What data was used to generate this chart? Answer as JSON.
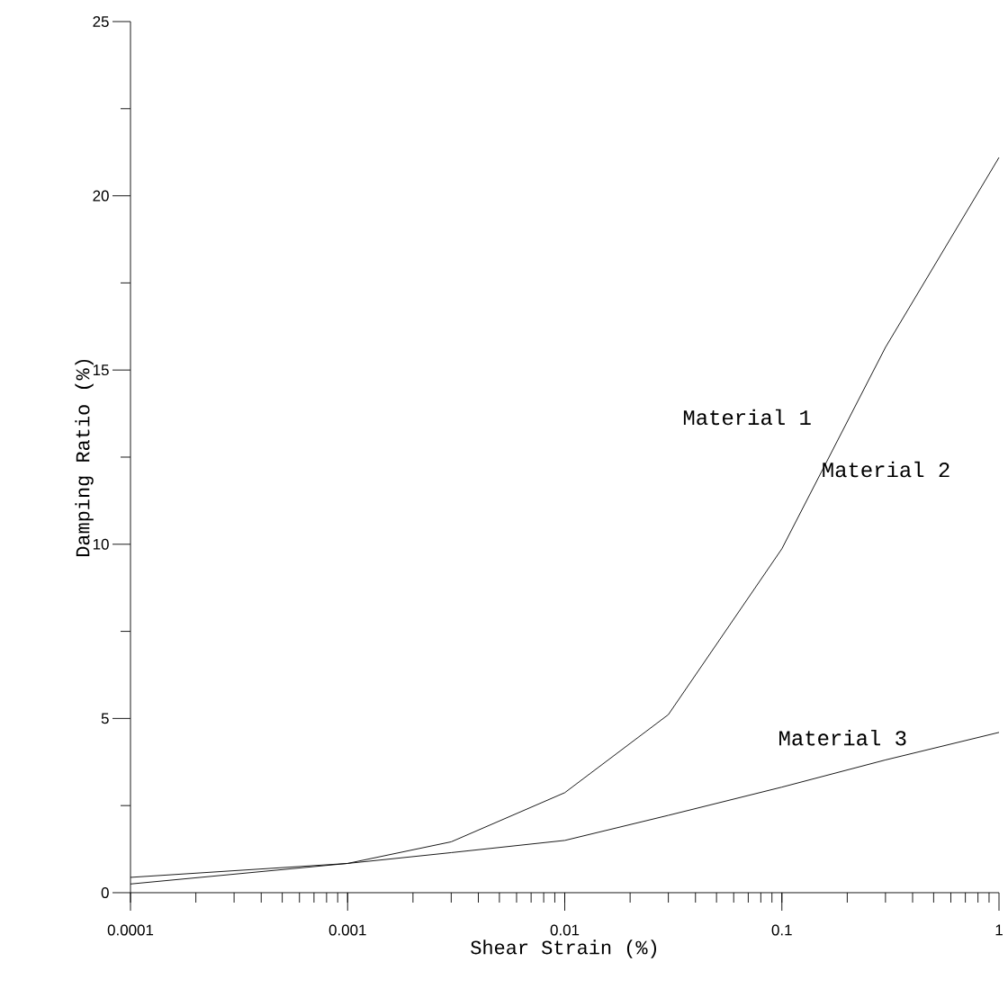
{
  "chart_data": {
    "type": "line",
    "xlabel": "Shear Strain (%)",
    "ylabel": "Damping Ratio (%)",
    "log": "x",
    "x": [
      0.0001,
      0.001,
      0.003,
      0.01,
      0.03,
      0.1,
      0.3,
      1
    ],
    "series": [
      {
        "color": "#000000",
        "values": [
          0.25,
          0.84,
          1.46,
          2.87,
          5.11,
          9.87,
          15.65,
          21.1
        ]
      },
      {
        "color": "#000000",
        "values": [
          0.44,
          0.84,
          1.15,
          1.5,
          2.22,
          3.03,
          3.81,
          4.6
        ]
      }
    ],
    "annotations": [
      "Material 1",
      "Material 2",
      "Material 3"
    ],
    "xlim": [
      0.0001,
      1
    ],
    "xticks": [
      0.0001,
      0.001,
      0.01,
      0.1,
      1
    ],
    "ylim": [
      0,
      25
    ],
    "yticks": [
      0,
      5,
      10,
      15,
      20,
      25
    ]
  }
}
